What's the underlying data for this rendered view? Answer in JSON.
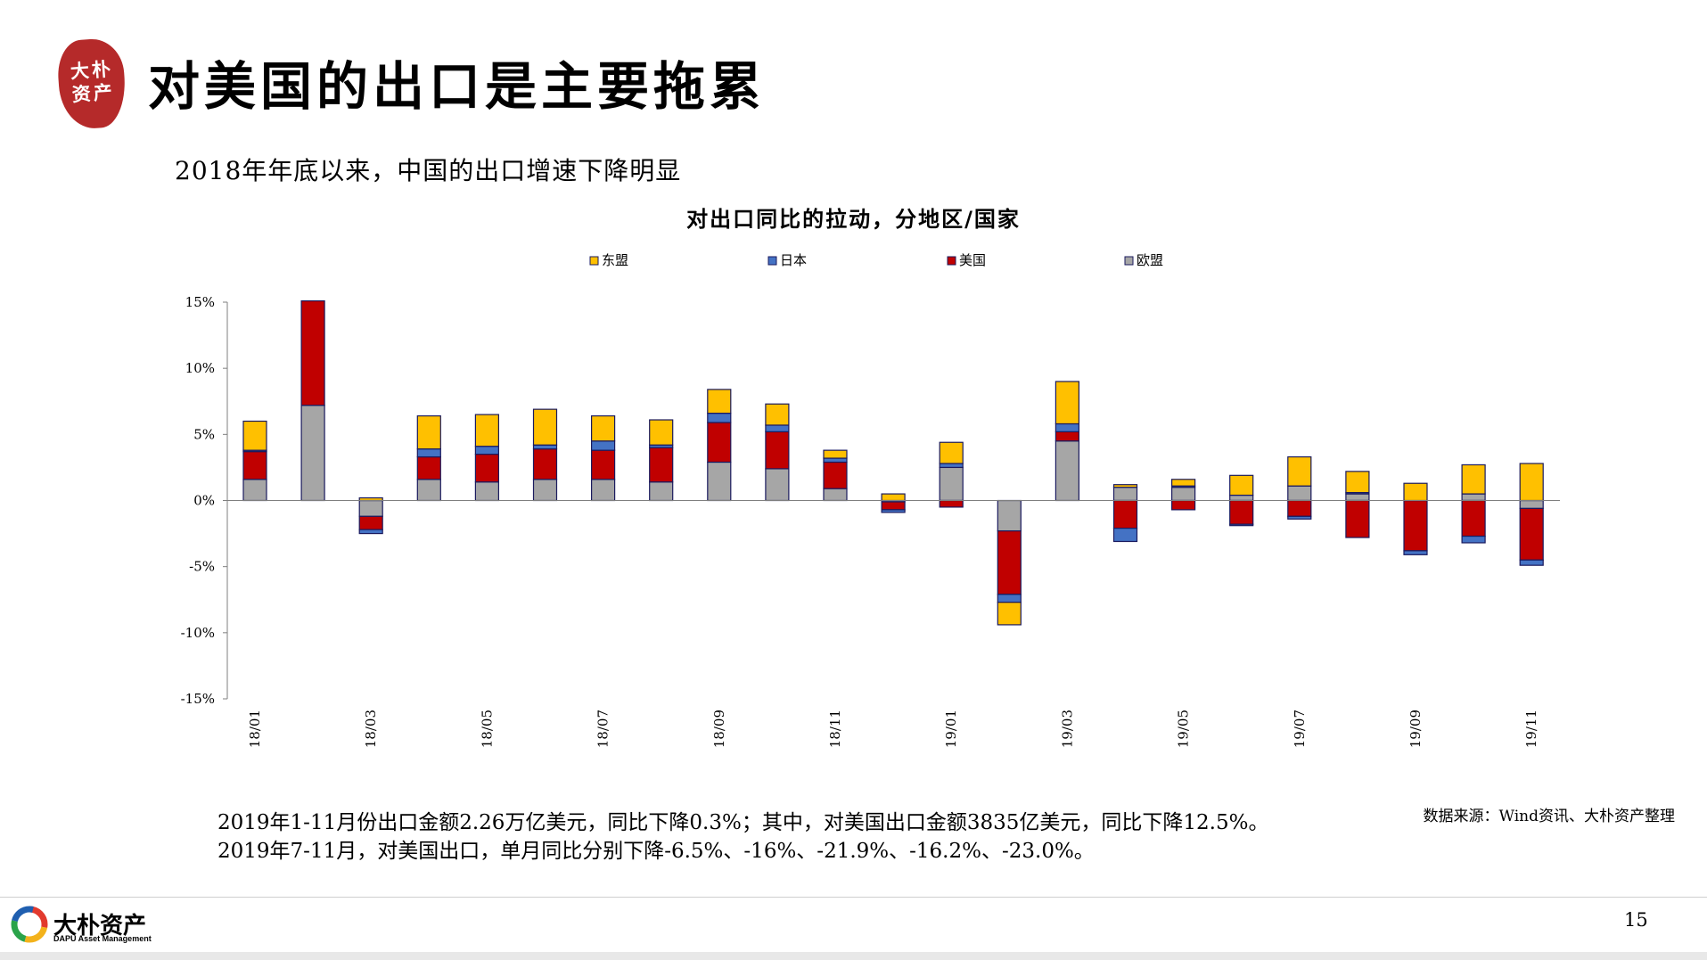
{
  "header": {
    "seal_text": "大朴资产",
    "title": "对美国的出口是主要拖累",
    "subtitle": "2018年年底以来，中国的出口增速下降明显"
  },
  "chart_data": {
    "type": "bar",
    "stacked": true,
    "title": "对出口同比的拉动，分地区/国家",
    "categories": [
      "18/01",
      "18/02",
      "18/03",
      "18/04",
      "18/05",
      "18/06",
      "18/07",
      "18/08",
      "18/09",
      "18/10",
      "18/11",
      "18/12",
      "19/01",
      "19/02",
      "19/03",
      "19/04",
      "19/05",
      "19/06",
      "19/07",
      "19/08",
      "19/09",
      "19/10",
      "19/11"
    ],
    "x_tick_labels": [
      "18/01",
      "",
      "18/03",
      "",
      "18/05",
      "",
      "18/07",
      "",
      "18/09",
      "",
      "18/11",
      "",
      "19/01",
      "",
      "19/03",
      "",
      "19/05",
      "",
      "19/07",
      "",
      "19/09",
      "",
      "19/11"
    ],
    "series": [
      {
        "name": "欧盟",
        "color": "#a6a6a6",
        "values": [
          1.6,
          7.2,
          -1.2,
          1.6,
          1.4,
          1.6,
          1.6,
          1.4,
          2.9,
          2.4,
          0.9,
          -0.1,
          2.5,
          -2.3,
          4.5,
          1.0,
          1.0,
          0.4,
          1.1,
          0.5,
          0.0,
          0.5,
          -0.6
        ]
      },
      {
        "name": "美国",
        "color": "#c00000",
        "values": [
          2.1,
          7.9,
          -1.0,
          1.7,
          2.1,
          2.3,
          2.2,
          2.6,
          3.0,
          2.8,
          2.0,
          -0.6,
          -0.5,
          -4.8,
          0.7,
          -2.1,
          -0.7,
          -1.8,
          -1.2,
          -2.8,
          -3.8,
          -2.7,
          -3.9
        ]
      },
      {
        "name": "日本",
        "color": "#4472c4",
        "values": [
          0.1,
          0.0,
          -0.3,
          0.6,
          0.6,
          0.3,
          0.7,
          0.2,
          0.7,
          0.5,
          0.3,
          -0.2,
          0.3,
          -0.6,
          0.6,
          -1.0,
          0.1,
          -0.1,
          -0.2,
          0.1,
          -0.3,
          -0.5,
          -0.4
        ]
      },
      {
        "name": "东盟",
        "color": "#ffc000",
        "values": [
          2.2,
          0.0,
          0.2,
          2.5,
          2.4,
          2.7,
          1.9,
          1.9,
          1.8,
          1.6,
          0.6,
          0.5,
          1.6,
          -1.7,
          3.2,
          0.2,
          0.5,
          1.5,
          2.2,
          1.6,
          1.3,
          2.2,
          2.8
        ]
      }
    ],
    "legend_order": [
      "东盟",
      "日本",
      "美国",
      "欧盟"
    ],
    "legend_position": "top",
    "ylim": [
      -15,
      15
    ],
    "y_ticks": [
      -15,
      -10,
      -5,
      0,
      5,
      10,
      15
    ],
    "y_tick_format": "percent"
  },
  "notes": {
    "line1": "2019年1-11月份出口金额2.26万亿美元，同比下降0.3%；其中，对美国出口金额3835亿美元，同比下降12.5%。",
    "line2": "2019年7-11月，对美国出口，单月同比分别下降-6.5%、-16%、-21.9%、-16.2%、-23.0%。",
    "source": "数据来源：Wind资讯、大朴资产整理"
  },
  "footer": {
    "logo_cn": "大朴资产",
    "logo_en": "DAPU Asset Management",
    "page_number": "15"
  }
}
